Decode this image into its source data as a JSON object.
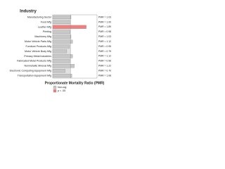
{
  "chart_data": {
    "type": "barh",
    "title": "Industry",
    "x_label": "Proportionate Mortality Ratio (PMR)",
    "categories": [
      "Manufacturing Sector",
      "Food Mfg",
      "Leather Mfg",
      "Printing",
      "Machinery Mfg",
      "Motor Vehicle Parts Mfg",
      "Furniture Products Mfg",
      "Motor Vehicle Body Mfg",
      "Primary Metal Industries",
      "Fabricated Metal Products Mfg",
      "Nonmetallic Mineral Mfg",
      "Electronic Computing Equipment Mfg",
      "Transportation Equipment Mfg"
    ],
    "values": [
      1.03,
      1.0,
      1.89,
      0.98,
      1.03,
      1.12,
      0.95,
      0.79,
      1.12,
      0.96,
      1.22,
      0.7,
      1.08
    ],
    "value_labels": [
      "PMR = 1.03",
      "PMR = 1.00",
      "PMR = 1.89",
      "PMR = 0.98",
      "PMR = 1.03",
      "PMR = 1.12",
      "PMR = 0.95",
      "PMR = 0.79",
      "PMR = 1.12",
      "PMR = 0.96",
      "PMR = 1.22",
      "PMR = 0.70",
      "PMR = 1.08"
    ],
    "colors": [
      "#c8c8c8",
      "#c8c8c8",
      "#f08080",
      "#c8c8c8",
      "#c8c8c8",
      "#c8c8c8",
      "#c8c8c8",
      "#c8c8c8",
      "#c8c8c8",
      "#c8c8c8",
      "#c8c8c8",
      "#c8c8c8",
      "#c8c8c8"
    ],
    "xlim": [
      0,
      2.5
    ],
    "reference": 1,
    "legend": [
      {
        "label": "Non-sig",
        "color": "#c8c8c8"
      },
      {
        "label": "p < .05",
        "color": "#f08080"
      }
    ]
  }
}
